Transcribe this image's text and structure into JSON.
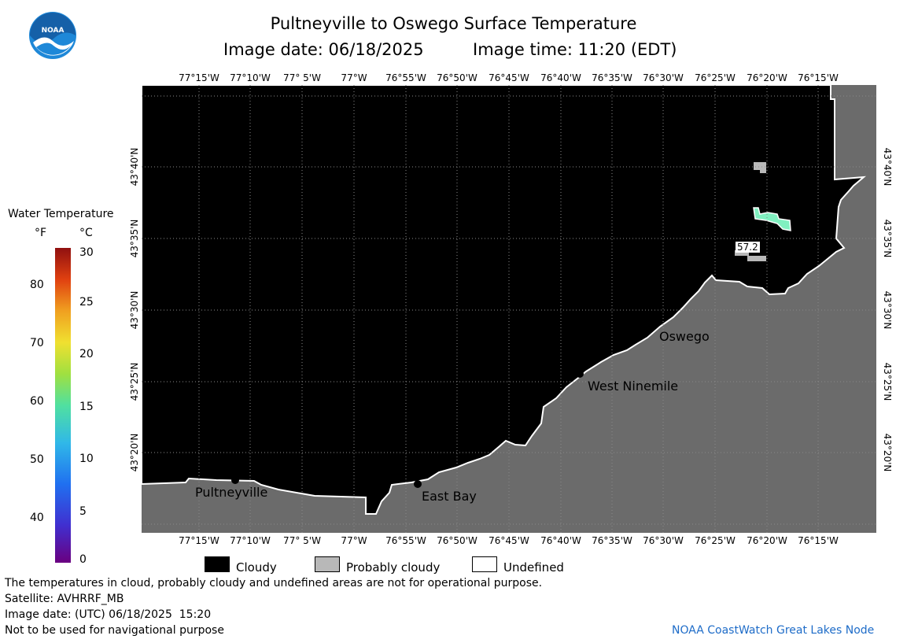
{
  "header": {
    "title": "Pultneyville to Oswego Surface Temperature",
    "date_line": "Image date: 06/18/2025",
    "time_line": "Image time: 11:20 (EDT)"
  },
  "logo": {
    "text": "NOAA"
  },
  "map": {
    "lon_labels": [
      "77°15'W",
      "77°10'W",
      "77° 5'W",
      "77°W",
      "76°55'W",
      "76°50'W",
      "76°45'W",
      "76°40'W",
      "76°35'W",
      "76°30'W",
      "76°25'W",
      "76°20'W",
      "76°15'W"
    ],
    "lat_labels": [
      "43°40'N",
      "43°35'N",
      "43°30'N",
      "43°25'N",
      "43°20'N"
    ],
    "places": [
      {
        "name": "Pultneyville"
      },
      {
        "name": "East Bay"
      },
      {
        "name": "West Ninemile"
      },
      {
        "name": "Oswego"
      }
    ],
    "temp_readout": "57.2",
    "colors": {
      "cloud": "#000000",
      "land": "#6b6b6b",
      "probably_cloudy": "#b8b8b8",
      "water_green": "#80f0c0"
    }
  },
  "colorbar": {
    "title": "Water Temperature",
    "unit_f": "°F",
    "unit_c": "°C",
    "f_ticks": [
      "80",
      "70",
      "60",
      "50",
      "40"
    ],
    "c_ticks": [
      "30",
      "25",
      "20",
      "15",
      "10",
      "5",
      "0"
    ]
  },
  "legend": {
    "items": [
      {
        "label": "Cloudy",
        "color": "#000000"
      },
      {
        "label": "Probably cloudy",
        "color": "#b8b8b8"
      },
      {
        "label": "Undefined",
        "color": "#ffffff"
      }
    ]
  },
  "footer": {
    "disclaimer": "The temperatures in cloud, probably cloudy and undefined areas are not for operational purpose.",
    "satellite": "Satellite: AVHRRF_MB",
    "utc_date": "Image date: (UTC) 06/18/2025  15:20",
    "nav_warning": "Not to be used for navigational purpose",
    "credit": "NOAA CoastWatch Great Lakes Node"
  }
}
